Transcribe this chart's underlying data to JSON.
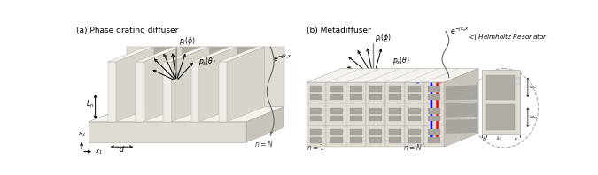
{
  "panel_a_label": "(a) Phase grating diffuser",
  "panel_b_label": "(b) Metadiffuser",
  "panel_c_label": "(c) Helmholtz Resonator",
  "bg_color": "#ffffff",
  "fig_width": 6.75,
  "fig_height": 1.98,
  "beige_light": "#f0ede8",
  "beige_mid": "#e0dbd3",
  "beige_dark": "#c8c3bb",
  "beige_shadow": "#d8d3cb",
  "beige_top": "#f5f2ee",
  "slot_dark": "#b0aba3"
}
